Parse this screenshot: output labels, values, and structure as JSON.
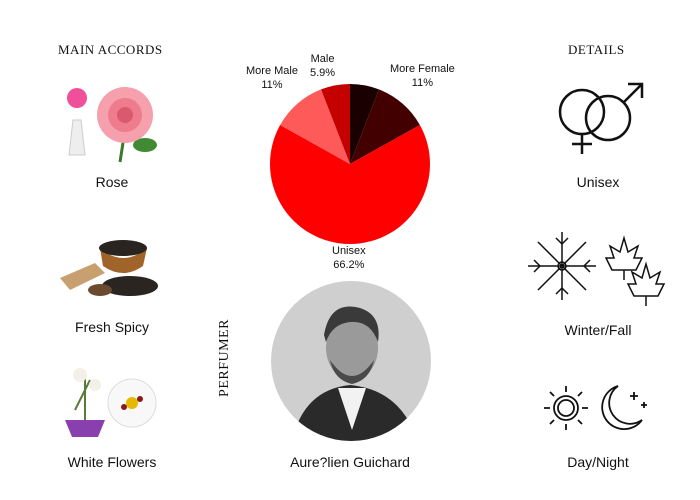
{
  "accords": {
    "title": "MAIN ACCORDS",
    "items": [
      {
        "label": "Rose",
        "icon": "rose-icon"
      },
      {
        "label": "Fresh Spicy",
        "icon": "pepper-icon"
      },
      {
        "label": "White Flowers",
        "icon": "white-flowers-icon"
      }
    ]
  },
  "details": {
    "title": "DETAILS",
    "items": [
      {
        "label": "Unisex",
        "icon": "gender-symbols-icon"
      },
      {
        "label": "Winter/Fall",
        "icon": "snowflake-leaves-icon"
      },
      {
        "label": "Day/Night",
        "icon": "sun-moon-icon"
      }
    ]
  },
  "perfumer": {
    "title": "PERFUMER",
    "name": "Aure?lien Guichard"
  },
  "chart_data": {
    "type": "pie",
    "slices": [
      {
        "name": "",
        "value": 5.9,
        "label": "",
        "color": "#1a0000"
      },
      {
        "name": "More Female",
        "value": 11,
        "label": "11%",
        "color": "#420000"
      },
      {
        "name": "Unisex",
        "value": 66.2,
        "label": "66.2%",
        "color": "#ff0000"
      },
      {
        "name": "More Male",
        "value": 11,
        "label": "11%",
        "color": "#ff5a5a"
      },
      {
        "name": "Male",
        "value": 5.9,
        "label": "5.9%",
        "color": "#c40000"
      }
    ]
  }
}
